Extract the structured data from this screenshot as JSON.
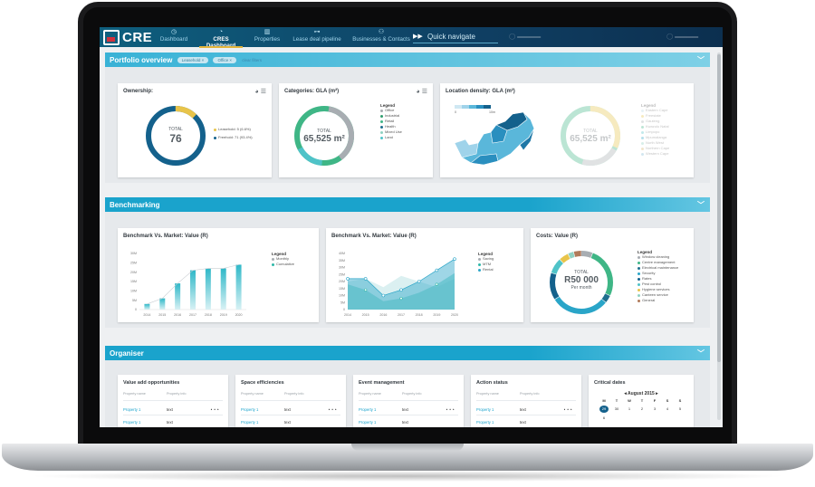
{
  "app": {
    "logo": "CRE",
    "nav": [
      {
        "label": "Dashboard",
        "icon": "clock-icon"
      },
      {
        "label": "CRES Dashboard",
        "icon": "dashboard-icon",
        "active": true
      },
      {
        "label": "Properties",
        "icon": "building-icon"
      },
      {
        "label": "Lease deal pipeline",
        "icon": "pipeline-icon"
      },
      {
        "label": "Businesses & Contacts",
        "icon": "contacts-icon"
      }
    ],
    "quick_navigate": "Quick navigate"
  },
  "portfolio": {
    "title": "Portfolio overview",
    "filters": [
      "Leasehold ×",
      "Office ×"
    ],
    "clear": "clear filters",
    "ownership": {
      "title": "Ownership:",
      "total_label": "TOTAL",
      "total": "76",
      "legend": [
        {
          "label": "Leasehold: 5 (6.6%)",
          "color": "#e8c44a",
          "pct": 6.6
        },
        {
          "label": "Freehold: 71 (93.4%)",
          "color": "#14618c",
          "pct": 93.4
        }
      ]
    },
    "categories": {
      "title": "Categories: GLA (m²)",
      "total_label": "TOTAL",
      "total": "65,525 m²",
      "legend_title": "Legend",
      "legend": [
        {
          "label": "Office",
          "color": "#a8adb2"
        },
        {
          "label": "Industrial",
          "color": "#2f9e6e"
        },
        {
          "label": "Retail",
          "color": "#3fb686"
        },
        {
          "label": "Health",
          "color": "#1e6f8e"
        },
        {
          "label": "Mixed Use",
          "color": "#8fd1c2"
        },
        {
          "label": "Land",
          "color": "#4fc3c8"
        }
      ]
    },
    "location": {
      "title": "Location density: GLA (m²)",
      "scale": [
        "0",
        "10m"
      ],
      "total_label": "TOTAL",
      "total": "65,525 m²",
      "legend_title": "Legend",
      "legend": [
        {
          "label": "Eastern Cape",
          "color": "#b8d8e6"
        },
        {
          "label": "Freestate",
          "color": "#e8c44a"
        },
        {
          "label": "Gauteng",
          "color": "#a8adb2"
        },
        {
          "label": "Kwazulu Natal",
          "color": "#3fb686"
        },
        {
          "label": "Limpopo",
          "color": "#4fc3c8"
        },
        {
          "label": "Mpumalanga",
          "color": "#2aa5c8"
        },
        {
          "label": "North West",
          "color": "#8fd1c2"
        },
        {
          "label": "Northern Cape",
          "color": "#d9b56a"
        },
        {
          "label": "Western Cape",
          "color": "#7fb8d4"
        }
      ]
    }
  },
  "benchmarking": {
    "title": "Benchmarking",
    "bench_value": {
      "title": "Benchmark Vs. Market: Value (R)",
      "legend_title": "Legend",
      "legend": [
        {
          "label": "Monthly",
          "color": "#a8adb2"
        },
        {
          "label": "Cumulative",
          "color": "#2fb8a8"
        }
      ]
    },
    "bench_area": {
      "title": "Benchmark Vs. Market: Value (R)",
      "legend_title": "Legend",
      "legend": [
        {
          "label": "Saving",
          "color": "#a8adb2"
        },
        {
          "label": "MTM",
          "color": "#2fb8a8"
        },
        {
          "label": "Rental",
          "color": "#2aa5c8"
        }
      ]
    },
    "costs": {
      "title": "Costs: Value (R)",
      "total_label": "TOTAL",
      "total": "R50 000",
      "sub": "Per month",
      "legend_title": "Legend",
      "legend": [
        {
          "label": "Window cleaning",
          "color": "#a8adb2"
        },
        {
          "label": "Centre management",
          "color": "#3fb686"
        },
        {
          "label": "Electrical maintenance",
          "color": "#1e6f8e"
        },
        {
          "label": "Security",
          "color": "#2aa5c8"
        },
        {
          "label": "Rates",
          "color": "#14618c"
        },
        {
          "label": "Pest control",
          "color": "#4fc3c8"
        },
        {
          "label": "Hygiene services",
          "color": "#e8c44a"
        },
        {
          "label": "Canteen service",
          "color": "#8fd1c2"
        },
        {
          "label": "General",
          "color": "#b07a5a"
        }
      ]
    }
  },
  "chart_data": [
    {
      "type": "bar",
      "title": "Benchmark Vs. Market: Value (R)",
      "categories": [
        "2014",
        "2015",
        "2016",
        "2017",
        "2018",
        "2019",
        "2020"
      ],
      "y_ticks": [
        "0",
        "5M",
        "10M",
        "15M",
        "20M",
        "25M",
        "30M"
      ],
      "ylim": [
        0,
        30
      ],
      "series": [
        {
          "name": "Monthly",
          "values": [
            3,
            6,
            14,
            21,
            22,
            22,
            24
          ]
        },
        {
          "name": "Cumulative",
          "values": [
            3,
            6,
            14,
            21,
            22,
            22,
            24
          ]
        }
      ]
    },
    {
      "type": "area",
      "title": "Benchmark Vs. Market: Value (R)",
      "categories": [
        "2014",
        "2015",
        "2016",
        "2017",
        "2018",
        "2019",
        "2020"
      ],
      "y_ticks": [
        "0",
        "5M",
        "10M",
        "15M",
        "20M",
        "25M",
        "30M",
        "35M",
        "40M"
      ],
      "ylim": [
        0,
        40
      ],
      "series": [
        {
          "name": "Saving",
          "values": [
            20,
            22,
            16,
            24,
            20,
            16,
            22
          ]
        },
        {
          "name": "MTM",
          "values": [
            18,
            14,
            6,
            8,
            12,
            18,
            26
          ]
        },
        {
          "name": "Rental",
          "values": [
            22,
            22,
            10,
            14,
            20,
            28,
            36
          ]
        }
      ]
    },
    {
      "type": "pie",
      "title": "Costs: Value (R)",
      "categories": [
        "Window cleaning",
        "Centre management",
        "Electrical maintenance",
        "Security",
        "Rates",
        "Pest control",
        "Hygiene services",
        "Canteen service",
        "General"
      ],
      "values": [
        6,
        26,
        4,
        30,
        14,
        8,
        5,
        3,
        4
      ]
    }
  ],
  "organiser": {
    "title": "Organiser",
    "cards": [
      {
        "title": "Value add opportunities",
        "head": [
          "Property name",
          "Property info"
        ],
        "rows": [
          [
            "Property 1",
            "text"
          ],
          [
            "Property 1",
            "text"
          ]
        ]
      },
      {
        "title": "Space efficiencies",
        "head": [
          "Property name",
          "Property info"
        ],
        "rows": [
          [
            "Property 1",
            "text"
          ],
          [
            "Property 1",
            "text"
          ]
        ]
      },
      {
        "title": "Event management",
        "head": [
          "Property name",
          "Property info"
        ],
        "rows": [
          [
            "Property 1",
            "text"
          ],
          [
            "Property 1",
            "text"
          ]
        ]
      },
      {
        "title": "Action status",
        "head": [
          "Property name",
          "Property info"
        ],
        "rows": [
          [
            "Property 1",
            "text"
          ],
          [
            "Property 1",
            "text"
          ]
        ]
      }
    ],
    "calendar": {
      "title": "Critical dates",
      "month": "August 2015",
      "weekdays": [
        "M",
        "T",
        "W",
        "T",
        "F",
        "S",
        "S"
      ],
      "row1": [
        "29",
        "30",
        "1",
        "2",
        "3",
        "4",
        "5"
      ],
      "row2": [
        "6"
      ]
    }
  }
}
